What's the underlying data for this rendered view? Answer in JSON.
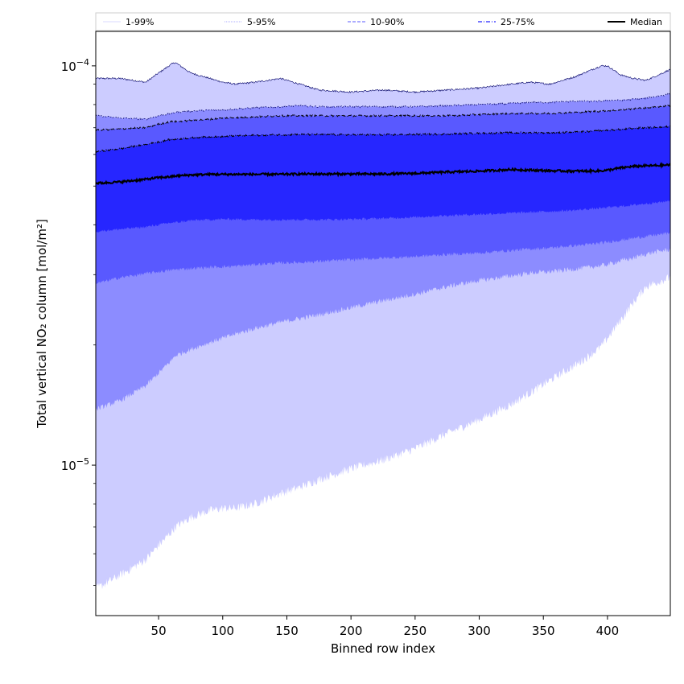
{
  "chart_data": {
    "type": "area",
    "xlabel": "Binned row index",
    "ylabel": "Total vertical NO₂ column [mol/m²]",
    "y_scale": "log",
    "xlim": [
      1,
      449
    ],
    "ylim": [
      4.2e-06,
      0.000122
    ],
    "x_ticks": [
      50,
      100,
      150,
      200,
      250,
      300,
      350,
      400
    ],
    "x_tick_labels": [
      "50",
      "100",
      "150",
      "200",
      "250",
      "300",
      "350",
      "400"
    ],
    "y_ticks": [
      1e-05,
      0.0001
    ],
    "y_tick_labels": [
      {
        "base": "10",
        "exp": "−5"
      },
      {
        "base": "10",
        "exp": "−4"
      }
    ],
    "grid": false,
    "legend_position": "top",
    "colors": {
      "band_1_99": "#ccccff",
      "band_5_95": "#8c8cff",
      "band_10_90": "#5959ff",
      "band_25_75": "#2626ff",
      "median": "#000000",
      "line_1_99": "#ccccff",
      "line_5_95": "#8c8cff",
      "line_10_90": "#5959ff",
      "line_25_75": "#2626ff"
    },
    "legend": [
      {
        "label": "1-99%",
        "style": "thin"
      },
      {
        "label": "5-95%",
        "style": "dotted"
      },
      {
        "label": "10-90%",
        "style": "dashed"
      },
      {
        "label": "25-75%",
        "style": "dashdot"
      },
      {
        "label": "Median",
        "style": "solid-bold"
      }
    ],
    "x": [
      1,
      20,
      40,
      50,
      60,
      63,
      75,
      90,
      100,
      110,
      125,
      145,
      160,
      175,
      200,
      225,
      250,
      275,
      300,
      325,
      340,
      355,
      375,
      385,
      395,
      400,
      410,
      420,
      430,
      440,
      449
    ],
    "series": [
      {
        "name": "1-99%",
        "lower": [
          4.9e-06,
          5.3e-06,
          5.8e-06,
          6.3e-06,
          6.8e-06,
          7e-06,
          7.4e-06,
          7.7e-06,
          7.8e-06,
          7.8e-06,
          8e-06,
          8.5e-06,
          8.8e-06,
          9.2e-06,
          9.8e-06,
          1.03e-05,
          1.1e-05,
          1.2e-05,
          1.3e-05,
          1.42e-05,
          1.52e-05,
          1.63e-05,
          1.78e-05,
          1.87e-05,
          1.98e-05,
          2.08e-05,
          2.3e-05,
          2.55e-05,
          2.8e-05,
          2.88e-05,
          2.95e-05
        ],
        "upper": [
          9.3e-05,
          9.3e-05,
          9.1e-05,
          9.6e-05,
          0.000101,
          0.000102,
          9.6e-05,
          9.3e-05,
          9.1e-05,
          9e-05,
          9.1e-05,
          9.3e-05,
          9e-05,
          8.7e-05,
          8.6e-05,
          8.7e-05,
          8.6e-05,
          8.7e-05,
          8.8e-05,
          9e-05,
          9.1e-05,
          9e-05,
          9.4e-05,
          9.7e-05,
          0.0001,
          0.0001,
          9.5e-05,
          9.3e-05,
          9.2e-05,
          9.5e-05,
          9.8e-05
        ]
      },
      {
        "name": "5-95%",
        "lower": [
          1.38e-05,
          1.45e-05,
          1.58e-05,
          1.7e-05,
          1.83e-05,
          1.88e-05,
          1.95e-05,
          2.03e-05,
          2.08e-05,
          2.13e-05,
          2.2e-05,
          2.28e-05,
          2.33e-05,
          2.38e-05,
          2.48e-05,
          2.58e-05,
          2.68e-05,
          2.8e-05,
          2.9e-05,
          2.98e-05,
          3.03e-05,
          3.05e-05,
          3.1e-05,
          3.13e-05,
          3.16e-05,
          3.18e-05,
          3.25e-05,
          3.3e-05,
          3.38e-05,
          3.43e-05,
          3.47e-05
        ],
        "upper": [
          7.5e-05,
          7.4e-05,
          7.35e-05,
          7.5e-05,
          7.6e-05,
          7.65e-05,
          7.7e-05,
          7.75e-05,
          7.75e-05,
          7.8e-05,
          7.85e-05,
          7.9e-05,
          7.95e-05,
          7.9e-05,
          7.9e-05,
          7.9e-05,
          7.9e-05,
          7.95e-05,
          8e-05,
          8.05e-05,
          8.1e-05,
          8.1e-05,
          8.15e-05,
          8.15e-05,
          8.15e-05,
          8.2e-05,
          8.2e-05,
          8.25e-05,
          8.3e-05,
          8.4e-05,
          8.5e-05
        ]
      },
      {
        "name": "10-90%",
        "lower": [
          2.85e-05,
          2.95e-05,
          3.02e-05,
          3.05e-05,
          3.08e-05,
          3.09e-05,
          3.11e-05,
          3.13e-05,
          3.14e-05,
          3.15e-05,
          3.18e-05,
          3.21e-05,
          3.22e-05,
          3.24e-05,
          3.27e-05,
          3.3e-05,
          3.33e-05,
          3.37e-05,
          3.4e-05,
          3.45e-05,
          3.48e-05,
          3.5e-05,
          3.55e-05,
          3.57e-05,
          3.6e-05,
          3.62e-05,
          3.66e-05,
          3.7e-05,
          3.74e-05,
          3.78e-05,
          3.82e-05
        ],
        "upper": [
          6.9e-05,
          6.95e-05,
          7e-05,
          7.15e-05,
          7.25e-05,
          7.25e-05,
          7.3e-05,
          7.35e-05,
          7.4e-05,
          7.42e-05,
          7.45e-05,
          7.5e-05,
          7.5e-05,
          7.5e-05,
          7.5e-05,
          7.5e-05,
          7.5e-05,
          7.5e-05,
          7.55e-05,
          7.6e-05,
          7.6e-05,
          7.6e-05,
          7.65e-05,
          7.68e-05,
          7.7e-05,
          7.72e-05,
          7.75e-05,
          7.8e-05,
          7.85e-05,
          7.9e-05,
          7.95e-05
        ]
      },
      {
        "name": "25-75%",
        "lower": [
          3.85e-05,
          3.9e-05,
          3.95e-05,
          4e-05,
          4.05e-05,
          4.05e-05,
          4.1e-05,
          4.12e-05,
          4.13e-05,
          4.13e-05,
          4.12e-05,
          4.12e-05,
          4.12e-05,
          4.12e-05,
          4.13e-05,
          4.15e-05,
          4.18e-05,
          4.22e-05,
          4.25e-05,
          4.28e-05,
          4.3e-05,
          4.32e-05,
          4.35e-05,
          4.38e-05,
          4.4e-05,
          4.42e-05,
          4.45e-05,
          4.48e-05,
          4.52e-05,
          4.55e-05,
          4.6e-05
        ],
        "upper": [
          6.1e-05,
          6.2e-05,
          6.35e-05,
          6.45e-05,
          6.55e-05,
          6.55e-05,
          6.6e-05,
          6.65e-05,
          6.65e-05,
          6.68e-05,
          6.7e-05,
          6.72e-05,
          6.73e-05,
          6.73e-05,
          6.72e-05,
          6.72e-05,
          6.73e-05,
          6.75e-05,
          6.78e-05,
          6.8e-05,
          6.8e-05,
          6.8e-05,
          6.82e-05,
          6.85e-05,
          6.88e-05,
          6.9e-05,
          6.93e-05,
          6.97e-05,
          7e-05,
          7.02e-05,
          7.05e-05
        ]
      },
      {
        "name": "Median",
        "values": [
          5.08e-05,
          5.12e-05,
          5.2e-05,
          5.25e-05,
          5.28e-05,
          5.3e-05,
          5.33e-05,
          5.35e-05,
          5.35e-05,
          5.35e-05,
          5.35e-05,
          5.35e-05,
          5.36e-05,
          5.36e-05,
          5.36e-05,
          5.36e-05,
          5.38e-05,
          5.42e-05,
          5.45e-05,
          5.5e-05,
          5.48e-05,
          5.46e-05,
          5.45e-05,
          5.45e-05,
          5.46e-05,
          5.48e-05,
          5.55e-05,
          5.6e-05,
          5.62e-05,
          5.63e-05,
          5.65e-05
        ]
      }
    ]
  }
}
